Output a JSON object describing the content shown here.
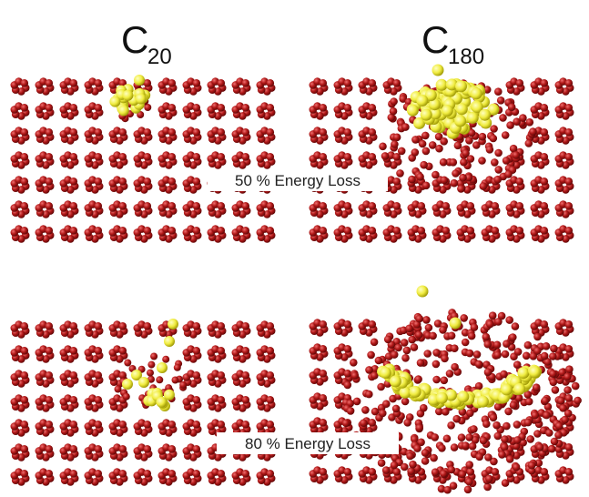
{
  "header": {
    "columns": [
      {
        "letter": "C",
        "subscript": "20"
      },
      {
        "letter": "C",
        "subscript": "180"
      }
    ]
  },
  "rows": [
    {
      "label": "50 % Energy Loss"
    },
    {
      "label": "80 % Energy Loss"
    }
  ]
}
